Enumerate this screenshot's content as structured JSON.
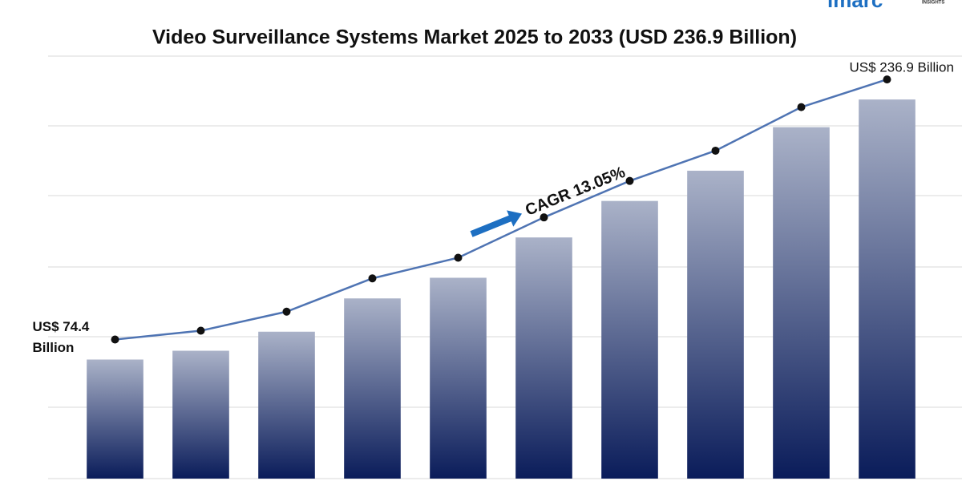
{
  "chart_data": {
    "type": "bar",
    "title": "Video Surveillance Systems Market 2025 to 2033 (USD 236.9 Billion)",
    "logo": "imarc",
    "logo_sub": "INSIGHTS",
    "categories": [
      null,
      null,
      null,
      null,
      null,
      null,
      null,
      null,
      null,
      null
    ],
    "values": [
      74.4,
      79.9,
      91.8,
      112.6,
      125.5,
      150.7,
      173.5,
      192.4,
      219.6,
      236.9
    ],
    "ylim": [
      0,
      260
    ],
    "bar_color_top": "#aab2c8",
    "bar_color_bottom": "#0a1c5a",
    "line_color": "#4f74b3",
    "marker_color": "#111111",
    "start_label": [
      "US$ 74.4",
      "Billion"
    ],
    "end_label": "US$ 236.9 Billion",
    "cagr_label": "CAGR 13.05%",
    "arrow_color": "#1d6fc2",
    "grid": true
  }
}
